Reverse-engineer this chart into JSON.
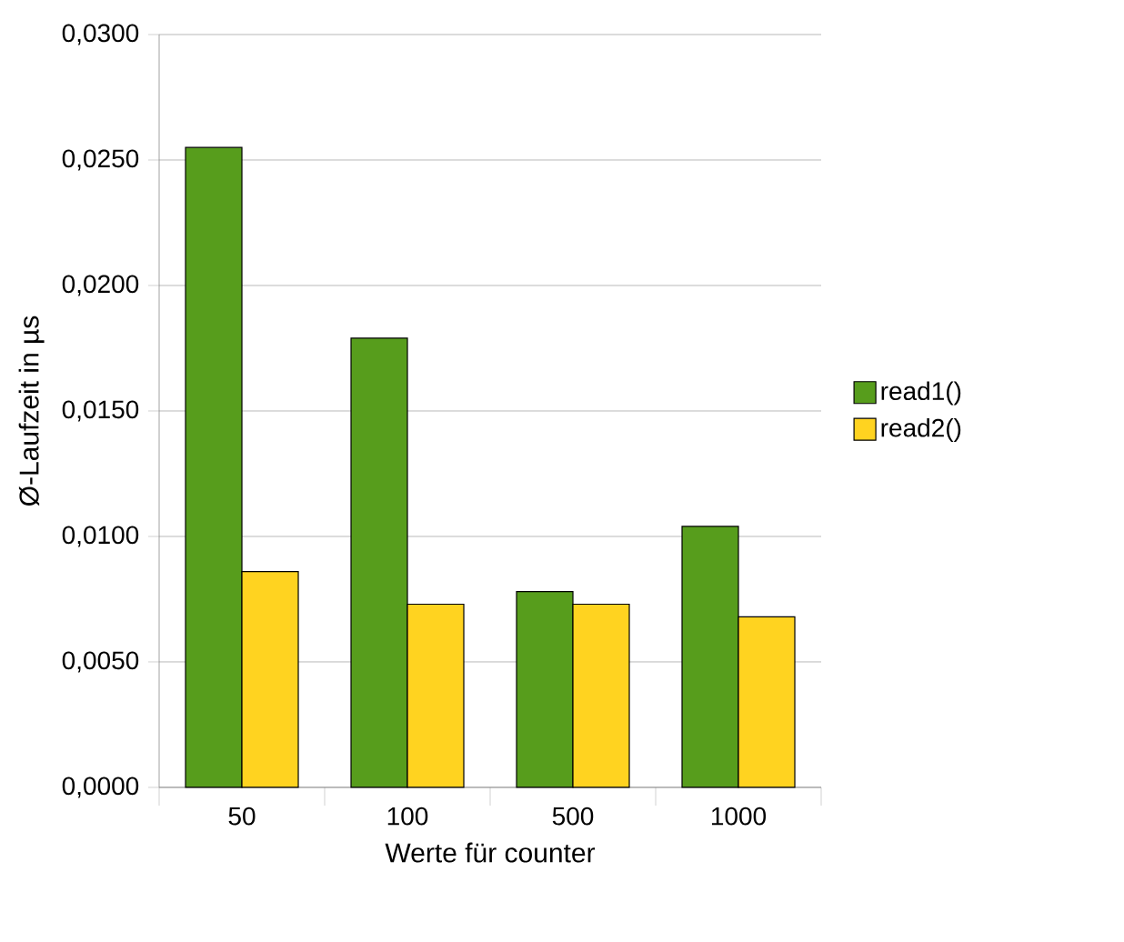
{
  "chart_data": {
    "type": "bar",
    "xlabel": "Werte für counter",
    "ylabel": "Ø-Laufzeit in µs",
    "categories": [
      "50",
      "100",
      "500",
      "1000"
    ],
    "series": [
      {
        "name": "read1()",
        "color": "#579d1c",
        "values": [
          0.0255,
          0.0179,
          0.0078,
          0.0104
        ]
      },
      {
        "name": "read2()",
        "color": "#ffd320",
        "values": [
          0.0086,
          0.0073,
          0.0073,
          0.0068
        ]
      }
    ],
    "ylim": [
      0,
      0.03
    ],
    "yticks": [
      {
        "value": 0,
        "label": "0,0000"
      },
      {
        "value": 0.005,
        "label": "0,0050"
      },
      {
        "value": 0.01,
        "label": "0,0100"
      },
      {
        "value": 0.015,
        "label": "0,0150"
      },
      {
        "value": 0.02,
        "label": "0,0200"
      },
      {
        "value": 0.025,
        "label": "0,0250"
      },
      {
        "value": 0.03,
        "label": "0,0300"
      }
    ],
    "grid": "y",
    "legend": "right"
  }
}
